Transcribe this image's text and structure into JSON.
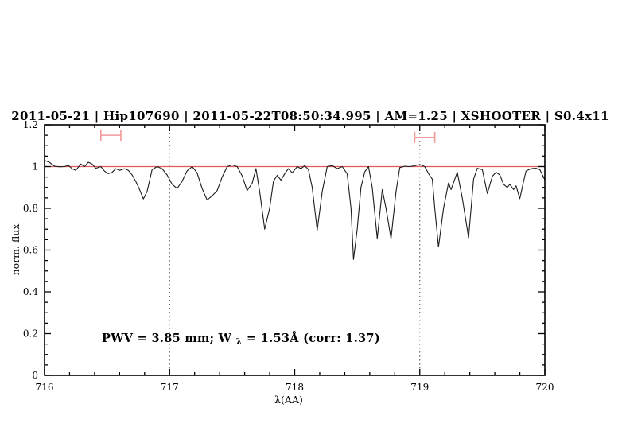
{
  "figure": {
    "title": "2011-05-21 | Hip107690 | 2011-05-22T08:50:34.995 | AM=1.25 | XSHOOTER | S0.4x11",
    "annotation": {
      "part1": "PWV = 3.85 mm; W",
      "subscript": "λ",
      "part2": " = 1.53Å (corr: 1.37)"
    },
    "colors": {
      "accent_blue": "#1a1acd",
      "continuum_red": "#e05a5a",
      "errorbar_pink": "#f29a9a",
      "spectrum_black": "#1c1c1c"
    }
  },
  "chart_data": {
    "type": "line",
    "title": "2011-05-21 | Hip107690 | 2011-05-22T08:50:34.995 | AM=1.25 | XSHOOTER | S0.4x11",
    "xlabel": "λ(AA)",
    "ylabel": "norm. flux",
    "xlim": [
      716,
      720
    ],
    "ylim": [
      0,
      1.2
    ],
    "x_major_ticks": [
      716,
      717,
      718,
      719,
      720
    ],
    "x_tick_labels": [
      "716",
      "717",
      "718",
      "719",
      "720"
    ],
    "x_minor_step": 0.2,
    "y_major_ticks": [
      0,
      0.2,
      0.4,
      0.6,
      0.8,
      1,
      1.2
    ],
    "y_tick_labels": [
      "0",
      "0.2",
      "0.4",
      "0.6",
      "0.8",
      "1",
      "1.2"
    ],
    "y_minor_step": 0.05,
    "grid": false,
    "legend": "none",
    "annotation_text": "PWV = 3.85 mm; W_λ = 1.53Å (corr: 1.37)",
    "reference_lines": {
      "continuum_flux": 1.0,
      "dotted_wavelengths": [
        717,
        719
      ]
    },
    "error_bars": [
      {
        "x": 716.53,
        "y": 1.15,
        "half_width": 0.08
      },
      {
        "x": 719.04,
        "y": 1.14,
        "half_width": 0.08
      }
    ],
    "series": [
      {
        "name": "normalized spectrum",
        "points": [
          [
            716.0,
            1.03
          ],
          [
            716.04,
            1.02
          ],
          [
            716.08,
            1.002
          ],
          [
            716.12,
            0.999
          ],
          [
            716.16,
            1.0
          ],
          [
            716.19,
            1.006
          ],
          [
            716.22,
            0.99
          ],
          [
            716.25,
            0.982
          ],
          [
            716.29,
            1.012
          ],
          [
            716.32,
            1.0
          ],
          [
            716.35,
            1.021
          ],
          [
            716.38,
            1.012
          ],
          [
            716.41,
            0.992
          ],
          [
            716.45,
            1.0
          ],
          [
            716.48,
            0.978
          ],
          [
            716.51,
            0.966
          ],
          [
            716.54,
            0.972
          ],
          [
            716.57,
            0.99
          ],
          [
            716.6,
            0.982
          ],
          [
            716.64,
            0.99
          ],
          [
            716.67,
            0.982
          ],
          [
            716.7,
            0.96
          ],
          [
            716.73,
            0.928
          ],
          [
            716.76,
            0.89
          ],
          [
            716.79,
            0.845
          ],
          [
            716.82,
            0.88
          ],
          [
            716.86,
            0.985
          ],
          [
            716.9,
            1.0
          ],
          [
            716.94,
            0.99
          ],
          [
            716.98,
            0.96
          ],
          [
            717.02,
            0.915
          ],
          [
            717.06,
            0.895
          ],
          [
            717.1,
            0.93
          ],
          [
            717.14,
            0.98
          ],
          [
            717.18,
            1.0
          ],
          [
            717.22,
            0.97
          ],
          [
            717.26,
            0.895
          ],
          [
            717.3,
            0.84
          ],
          [
            717.34,
            0.86
          ],
          [
            717.38,
            0.885
          ],
          [
            717.42,
            0.95
          ],
          [
            717.46,
            1.0
          ],
          [
            717.5,
            1.008
          ],
          [
            717.54,
            1.0
          ],
          [
            717.58,
            0.955
          ],
          [
            717.62,
            0.885
          ],
          [
            717.66,
            0.92
          ],
          [
            717.69,
            0.99
          ],
          [
            717.72,
            0.88
          ],
          [
            717.76,
            0.7
          ],
          [
            717.8,
            0.8
          ],
          [
            717.83,
            0.93
          ],
          [
            717.86,
            0.958
          ],
          [
            717.89,
            0.935
          ],
          [
            717.92,
            0.965
          ],
          [
            717.95,
            0.99
          ],
          [
            717.98,
            0.97
          ],
          [
            718.02,
            1.0
          ],
          [
            718.05,
            0.99
          ],
          [
            718.08,
            1.005
          ],
          [
            718.11,
            0.985
          ],
          [
            718.14,
            0.9
          ],
          [
            718.18,
            0.695
          ],
          [
            718.22,
            0.88
          ],
          [
            718.26,
            1.0
          ],
          [
            718.3,
            1.005
          ],
          [
            718.34,
            0.99
          ],
          [
            718.38,
            1.0
          ],
          [
            718.42,
            0.965
          ],
          [
            718.45,
            0.8
          ],
          [
            718.47,
            0.555
          ],
          [
            718.5,
            0.7
          ],
          [
            718.53,
            0.9
          ],
          [
            718.56,
            0.975
          ],
          [
            718.59,
            1.0
          ],
          [
            718.62,
            0.9
          ],
          [
            718.66,
            0.655
          ],
          [
            718.7,
            0.89
          ],
          [
            718.73,
            0.8
          ],
          [
            718.77,
            0.655
          ],
          [
            718.81,
            0.88
          ],
          [
            718.84,
            0.995
          ],
          [
            718.88,
            1.002
          ],
          [
            718.92,
            1.0
          ],
          [
            718.96,
            1.004
          ],
          [
            719.0,
            1.01
          ],
          [
            719.04,
            1.0
          ],
          [
            719.07,
            0.966
          ],
          [
            719.1,
            0.94
          ],
          [
            719.12,
            0.8
          ],
          [
            719.15,
            0.615
          ],
          [
            719.19,
            0.8
          ],
          [
            719.23,
            0.922
          ],
          [
            719.25,
            0.89
          ],
          [
            719.3,
            0.973
          ],
          [
            719.34,
            0.85
          ],
          [
            719.39,
            0.66
          ],
          [
            719.43,
            0.94
          ],
          [
            719.46,
            0.992
          ],
          [
            719.5,
            0.985
          ],
          [
            719.54,
            0.871
          ],
          [
            719.58,
            0.954
          ],
          [
            719.61,
            0.973
          ],
          [
            719.64,
            0.96
          ],
          [
            719.67,
            0.915
          ],
          [
            719.7,
            0.9
          ],
          [
            719.72,
            0.915
          ],
          [
            719.75,
            0.89
          ],
          [
            719.77,
            0.908
          ],
          [
            719.8,
            0.846
          ],
          [
            719.83,
            0.93
          ],
          [
            719.85,
            0.979
          ],
          [
            719.89,
            0.99
          ],
          [
            719.93,
            0.992
          ],
          [
            719.96,
            0.985
          ],
          [
            720.0,
            0.936
          ]
        ]
      }
    ]
  }
}
